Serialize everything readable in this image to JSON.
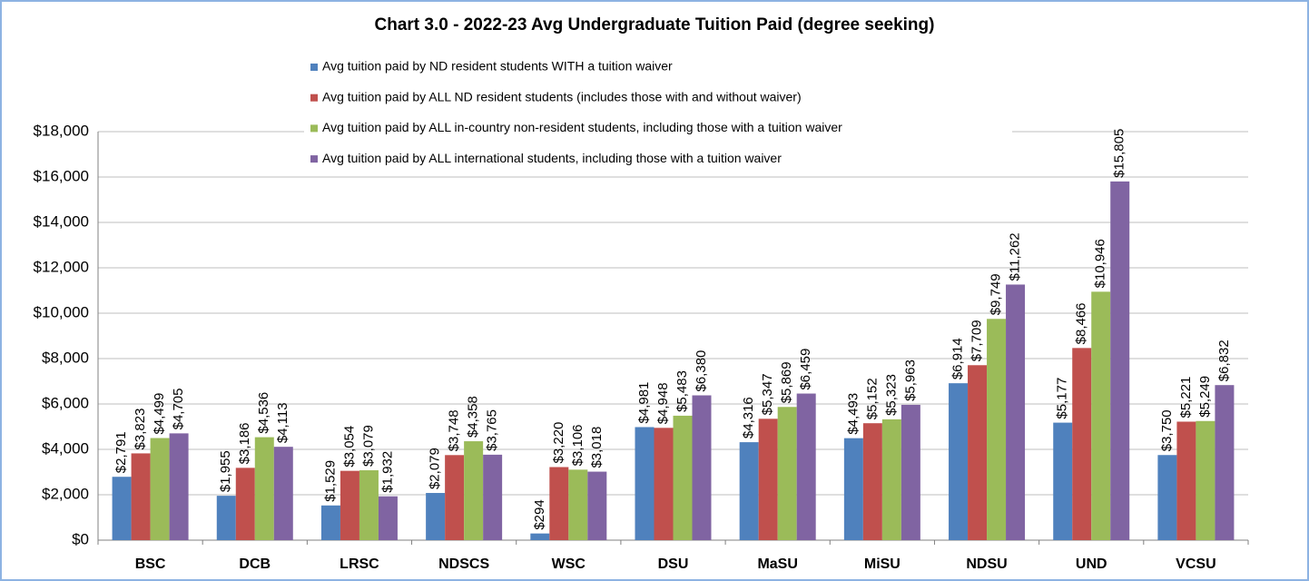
{
  "chart_data": {
    "type": "bar",
    "title": "Chart 3.0 - 2022-23 Avg Undergraduate Tuition Paid (degree seeking)",
    "categories": [
      "BSC",
      "DCB",
      "LRSC",
      "NDSCS",
      "WSC",
      "DSU",
      "MaSU",
      "MiSU",
      "NDSU",
      "UND",
      "VCSU"
    ],
    "series": [
      {
        "name": "Avg tuition paid by ND resident students WITH a tuition waiver",
        "color": "#4f81bd",
        "values": [
          2791,
          1955,
          1529,
          2079,
          294,
          4981,
          4316,
          4493,
          6914,
          5177,
          3750
        ],
        "value_labels": [
          "$2,791",
          "$1,955",
          "$1,529",
          "$2,079",
          "$294",
          "$4,981",
          "$4,316",
          "$4,493",
          "$6,914",
          "$5,177",
          "$3,750"
        ]
      },
      {
        "name": "Avg tuition paid by ALL ND resident students (includes those with and without waiver)",
        "color": "#c0504d",
        "values": [
          3823,
          3186,
          3054,
          3748,
          3220,
          4948,
          5347,
          5152,
          7709,
          8466,
          5221
        ],
        "value_labels": [
          "$3,823",
          "$3,186",
          "$3,054",
          "$3,748",
          "$3,220",
          "$4,948",
          "$5,347",
          "$5,152",
          "$7,709",
          "$8,466",
          "$5,221"
        ]
      },
      {
        "name": "Avg tuition paid by ALL in-country non-resident students, including those with a tuition waiver",
        "color": "#9bbb59",
        "values": [
          4499,
          4536,
          3079,
          4358,
          3106,
          5483,
          5869,
          5323,
          9749,
          10946,
          5249
        ],
        "value_labels": [
          "$4,499",
          "$4,536",
          "$3,079",
          "$4,358",
          "$3,106",
          "$5,483",
          "$5,869",
          "$5,323",
          "$9,749",
          "$10,946",
          "$5,249"
        ]
      },
      {
        "name": "Avg tuition paid by ALL international students, including those with a tuition waiver",
        "color": "#8064a2",
        "values": [
          4705,
          4113,
          1932,
          3765,
          3018,
          6380,
          6459,
          5963,
          11262,
          15805,
          6832
        ],
        "value_labels": [
          "$4,705",
          "$4,113",
          "$1,932",
          "$3,765",
          "$3,018",
          "$6,380",
          "$6,459",
          "$5,963",
          "$11,262",
          "$15,805",
          "$6,832"
        ]
      }
    ],
    "ylim": [
      0,
      18000
    ],
    "yticks": [
      {
        "value": 0,
        "label": "$0"
      },
      {
        "value": 2000,
        "label": "$2,000"
      },
      {
        "value": 4000,
        "label": "$4,000"
      },
      {
        "value": 6000,
        "label": "$6,000"
      },
      {
        "value": 8000,
        "label": "$8,000"
      },
      {
        "value": 10000,
        "label": "$10,000"
      },
      {
        "value": 12000,
        "label": "$12,000"
      },
      {
        "value": 14000,
        "label": "$14,000"
      },
      {
        "value": 16000,
        "label": "$16,000"
      },
      {
        "value": 18000,
        "label": "$18,000"
      }
    ],
    "grid": true,
    "legend": "top"
  }
}
